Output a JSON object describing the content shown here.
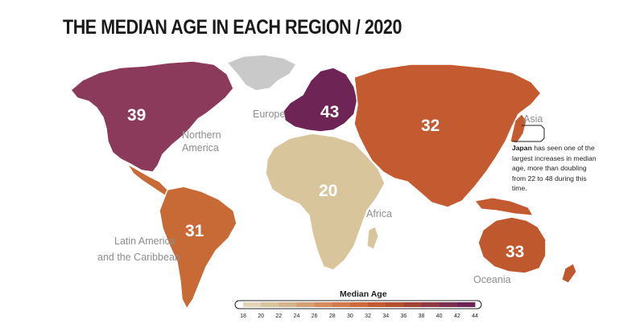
{
  "title": "THE MEDIAN AGE IN EACH REGION / 2020",
  "regions": [
    {
      "name": "Northern America",
      "value": "39",
      "color": "#8c3a5c"
    },
    {
      "name": "Europe",
      "value": "43",
      "color": "#6e2455"
    },
    {
      "name": "Asia",
      "value": "32",
      "color": "#c45a30"
    },
    {
      "name": "Africa",
      "value": "20",
      "color": "#d8c59c"
    },
    {
      "name": "Latin America and the Caribbean",
      "value": "31",
      "color": "#c86a36"
    },
    {
      "name": "Oceania",
      "value": "33",
      "color": "#c0582d"
    }
  ],
  "greenland_color": "#c9c9c9",
  "labels": {
    "northern_america_1": "Northern",
    "northern_america_2": "America",
    "europe": "Europe",
    "asia": "Asia",
    "africa": "Africa",
    "latam_1": "Latin America",
    "latam_2": "and the Caribbean",
    "oceania": "Oceania"
  },
  "note": {
    "bold": "Japan",
    "text": " has seen one of the largest increases in median age, more than doubling from 22 to 48 during this time."
  },
  "legend": {
    "title": "Median Age",
    "ticks": [
      "18",
      "20",
      "22",
      "24",
      "26",
      "28",
      "30",
      "32",
      "34",
      "36",
      "38",
      "40",
      "42",
      "44"
    ],
    "colors": [
      "#e2d5b8",
      "#d8c59c",
      "#d2b58a",
      "#d4a174",
      "#d68c5e",
      "#d37a4c",
      "#cf6a3c",
      "#c45a30",
      "#b4502f",
      "#a24334",
      "#8f3a42",
      "#7c3150",
      "#6e2455"
    ]
  }
}
